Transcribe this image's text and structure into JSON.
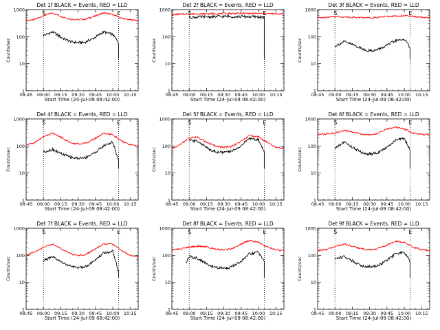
{
  "figure": {
    "background": "#ffffff",
    "event_color": "#000000",
    "lld_color": "#ff0000"
  },
  "chart_data": [
    {
      "type": "line",
      "title": "Det 1f BLACK = Events, RED = LLD",
      "xlabel": "Start Time (24-Jul-09 08:42:00)",
      "ylabel": "Counts/sec",
      "yscale": "log",
      "ylim": [
        1,
        1000
      ],
      "xlim": [
        "08:45",
        "10:22"
      ],
      "xticks": [
        "08:45",
        "09:00",
        "09:15",
        "09:30",
        "09:45",
        "10:00",
        "10:15"
      ],
      "yticks": [
        "1",
        "10",
        "100",
        "1000"
      ],
      "grid": false,
      "markers": [
        {
          "x": "09:00",
          "label": "S",
          "style": "dotted"
        },
        {
          "x": "10:05",
          "label": "E",
          "style": "dotted"
        }
      ],
      "series": [
        {
          "name": "Events",
          "color": "#000000",
          "x": [
            "09:00",
            "09:08",
            "09:16",
            "09:24",
            "09:30",
            "09:36",
            "09:44",
            "09:52",
            "10:00",
            "10:05"
          ],
          "values": [
            110,
            150,
            90,
            65,
            60,
            62,
            90,
            150,
            120,
            60
          ]
        },
        {
          "name": "LLD",
          "color": "#ff0000",
          "x": [
            "08:45",
            "08:52",
            "09:00",
            "09:08",
            "09:16",
            "09:24",
            "09:30",
            "09:36",
            "09:44",
            "09:52",
            "10:00",
            "10:08",
            "10:15",
            "10:22"
          ],
          "values": [
            400,
            420,
            600,
            750,
            550,
            440,
            430,
            440,
            560,
            760,
            650,
            480,
            420,
            400
          ]
        }
      ]
    },
    {
      "type": "line",
      "title": "Det 2f BLACK = Events, RED = LLD",
      "xlabel": "Start Time (24-Jul-09 08:42:00)",
      "ylabel": "Counts/sec",
      "yscale": "log",
      "ylim": [
        1,
        1000
      ],
      "xlim": [
        "08:45",
        "10:22"
      ],
      "xticks": [
        "08:45",
        "09:00",
        "09:15",
        "09:30",
        "09:45",
        "10:00",
        "10:15"
      ],
      "yticks": [
        "1",
        "10",
        "100",
        "1000"
      ],
      "grid": false,
      "markers": [
        {
          "x": "09:00",
          "label": "S",
          "style": "dotted"
        },
        {
          "x": "10:05",
          "label": "E",
          "style": "dotted"
        }
      ],
      "series": [
        {
          "name": "Events",
          "color": "#000000",
          "x": [
            "09:00",
            "09:15",
            "09:30",
            "09:45",
            "10:00",
            "10:05"
          ],
          "values": [
            520,
            540,
            560,
            550,
            540,
            500
          ]
        },
        {
          "name": "LLD",
          "color": "#ff0000",
          "x": [
            "08:45",
            "09:00",
            "09:15",
            "09:30",
            "09:45",
            "10:00",
            "10:15",
            "10:22"
          ],
          "values": [
            660,
            690,
            700,
            720,
            730,
            720,
            700,
            690
          ]
        }
      ]
    },
    {
      "type": "line",
      "title": "Det 3f BLACK = Events, RED = LLD",
      "xlabel": "Start Time (24-Jul-09 08:42:00)",
      "ylabel": "Counts/sec",
      "yscale": "log",
      "ylim": [
        1,
        1000
      ],
      "xlim": [
        "08:45",
        "10:22"
      ],
      "xticks": [
        "08:45",
        "09:00",
        "09:15",
        "09:30",
        "09:45",
        "10:00",
        "10:15"
      ],
      "yticks": [
        "1",
        "10",
        "100",
        "1000"
      ],
      "grid": false,
      "markers": [
        {
          "x": "09:00",
          "label": "S",
          "style": "dotted"
        },
        {
          "x": "10:05",
          "label": "E",
          "style": "dotted"
        }
      ],
      "series": [
        {
          "name": "Events",
          "color": "#000000",
          "x": [
            "09:00",
            "09:08",
            "09:16",
            "09:24",
            "09:30",
            "09:36",
            "09:44",
            "09:52",
            "10:00",
            "10:05"
          ],
          "values": [
            45,
            65,
            50,
            35,
            30,
            32,
            45,
            70,
            80,
            40
          ]
        },
        {
          "name": "LLD",
          "color": "#ff0000",
          "x": [
            "08:45",
            "09:00",
            "09:15",
            "09:30",
            "09:45",
            "10:00",
            "10:15",
            "10:22"
          ],
          "values": [
            500,
            560,
            520,
            500,
            560,
            600,
            520,
            500
          ]
        }
      ]
    },
    {
      "type": "line",
      "title": "Det 4f BLACK = Events, RED = LLD",
      "xlabel": "Start Time (24-Jul-09 08:42:00)",
      "ylabel": "Counts/sec",
      "yscale": "log",
      "ylim": [
        1,
        1000
      ],
      "xlim": [
        "08:45",
        "10:22"
      ],
      "xticks": [
        "08:45",
        "09:00",
        "09:15",
        "09:30",
        "09:45",
        "10:00",
        "10:15"
      ],
      "yticks": [
        "1",
        "10",
        "100",
        "1000"
      ],
      "grid": false,
      "markers": [
        {
          "x": "09:00",
          "label": "S",
          "style": "dotted"
        },
        {
          "x": "10:05",
          "label": "E",
          "style": "dotted"
        }
      ],
      "series": [
        {
          "name": "Events",
          "color": "#000000",
          "x": [
            "09:00",
            "09:08",
            "09:16",
            "09:24",
            "09:30",
            "09:36",
            "09:44",
            "09:52",
            "10:00",
            "10:05"
          ],
          "values": [
            60,
            75,
            50,
            38,
            35,
            37,
            55,
            100,
            140,
            30
          ]
        },
        {
          "name": "LLD",
          "color": "#ff0000",
          "x": [
            "08:45",
            "08:52",
            "09:00",
            "09:08",
            "09:16",
            "09:24",
            "09:30",
            "09:36",
            "09:44",
            "09:52",
            "10:00",
            "10:08",
            "10:15",
            "10:22"
          ],
          "values": [
            110,
            130,
            220,
            300,
            200,
            130,
            120,
            125,
            180,
            300,
            260,
            150,
            110,
            100
          ]
        }
      ]
    },
    {
      "type": "line",
      "title": "Det 5f BLACK = Events, RED = LLD",
      "xlabel": "Start Time (24-Jul-09 08:42:00)",
      "ylabel": "Counts/sec",
      "yscale": "log",
      "ylim": [
        1,
        1000
      ],
      "xlim": [
        "08:45",
        "10:22"
      ],
      "xticks": [
        "08:45",
        "09:00",
        "09:15",
        "09:30",
        "09:45",
        "10:00",
        "10:15"
      ],
      "yticks": [
        "1",
        "10",
        "100",
        "1000"
      ],
      "grid": false,
      "markers": [
        {
          "x": "09:00",
          "label": "S",
          "style": "dotted"
        },
        {
          "x": "10:05",
          "label": "E",
          "style": "dotted"
        }
      ],
      "series": [
        {
          "name": "Events",
          "color": "#000000",
          "x": [
            "09:00",
            "09:08",
            "09:16",
            "09:24",
            "09:30",
            "09:36",
            "09:44",
            "09:52",
            "10:00",
            "10:05"
          ],
          "values": [
            160,
            150,
            80,
            60,
            58,
            62,
            95,
            190,
            170,
            60
          ]
        },
        {
          "name": "LLD",
          "color": "#ff0000",
          "x": [
            "08:45",
            "08:52",
            "09:00",
            "09:08",
            "09:16",
            "09:24",
            "09:30",
            "09:36",
            "09:44",
            "09:52",
            "10:00",
            "10:08",
            "10:15",
            "10:22"
          ],
          "values": [
            80,
            110,
            200,
            210,
            130,
            95,
            90,
            95,
            140,
            240,
            220,
            130,
            90,
            80
          ]
        }
      ]
    },
    {
      "type": "line",
      "title": "Det 6f BLACK = Events, RED = LLD",
      "xlabel": "Start Time (24-Jul-09 08:42:00)",
      "ylabel": "Counts/sec",
      "yscale": "log",
      "ylim": [
        1,
        1000
      ],
      "xlim": [
        "08:45",
        "10:22"
      ],
      "xticks": [
        "08:45",
        "09:00",
        "09:15",
        "09:30",
        "09:45",
        "10:00",
        "10:15"
      ],
      "yticks": [
        "1",
        "10",
        "100",
        "1000"
      ],
      "grid": false,
      "markers": [
        {
          "x": "09:00",
          "label": "S",
          "style": "dotted"
        },
        {
          "x": "10:05",
          "label": "E",
          "style": "dotted"
        }
      ],
      "series": [
        {
          "name": "Events",
          "color": "#000000",
          "x": [
            "09:00",
            "09:08",
            "09:16",
            "09:24",
            "09:30",
            "09:36",
            "09:44",
            "09:52",
            "10:00",
            "10:05"
          ],
          "values": [
            80,
            140,
            85,
            55,
            50,
            55,
            80,
            160,
            190,
            70
          ]
        },
        {
          "name": "LLD",
          "color": "#ff0000",
          "x": [
            "08:45",
            "09:00",
            "09:08",
            "09:16",
            "09:24",
            "09:30",
            "09:36",
            "09:44",
            "09:52",
            "10:00",
            "10:08",
            "10:15",
            "10:22"
          ],
          "values": [
            260,
            300,
            370,
            320,
            270,
            260,
            280,
            400,
            500,
            420,
            300,
            270,
            260
          ]
        }
      ]
    },
    {
      "type": "line",
      "title": "Det 7f BLACK = Events, RED = LLD",
      "xlabel": "Start Time (24-Jul-09 08:42:00)",
      "ylabel": "Counts/sec",
      "yscale": "log",
      "ylim": [
        1,
        1000
      ],
      "xlim": [
        "08:45",
        "10:22"
      ],
      "xticks": [
        "08:45",
        "09:00",
        "09:15",
        "09:30",
        "09:45",
        "10:00",
        "10:15"
      ],
      "yticks": [
        "1",
        "10",
        "100",
        "1000"
      ],
      "grid": false,
      "markers": [
        {
          "x": "09:00",
          "label": "S",
          "style": "dotted"
        },
        {
          "x": "10:05",
          "label": "E",
          "style": "dotted"
        }
      ],
      "series": [
        {
          "name": "Events",
          "color": "#000000",
          "x": [
            "09:00",
            "09:08",
            "09:16",
            "09:24",
            "09:30",
            "09:36",
            "09:44",
            "09:52",
            "10:00",
            "10:05"
          ],
          "values": [
            65,
            85,
            55,
            38,
            35,
            38,
            60,
            120,
            140,
            25
          ]
        },
        {
          "name": "LLD",
          "color": "#ff0000",
          "x": [
            "08:45",
            "08:52",
            "09:00",
            "09:08",
            "09:16",
            "09:24",
            "09:30",
            "09:36",
            "09:44",
            "09:52",
            "10:00",
            "10:08",
            "10:15",
            "10:22"
          ],
          "values": [
            100,
            130,
            200,
            260,
            170,
            110,
            100,
            105,
            160,
            260,
            260,
            150,
            100,
            90
          ]
        }
      ]
    },
    {
      "type": "line",
      "title": "Det 8f BLACK = Events, RED = LLD",
      "xlabel": "Start Time (24-Jul-09 08:42:00)",
      "ylabel": "Counts/sec",
      "yscale": "log",
      "ylim": [
        1,
        1000
      ],
      "xlim": [
        "08:45",
        "10:22"
      ],
      "xticks": [
        "08:45",
        "09:00",
        "09:15",
        "09:30",
        "09:45",
        "10:00",
        "10:15"
      ],
      "yticks": [
        "1",
        "10",
        "100",
        "1000"
      ],
      "grid": false,
      "markers": [
        {
          "x": "09:00",
          "label": "S",
          "style": "dotted"
        },
        {
          "x": "10:05",
          "label": "E",
          "style": "dotted"
        }
      ],
      "series": [
        {
          "name": "Events",
          "color": "#000000",
          "x": [
            "08:57",
            "09:00",
            "09:08",
            "09:16",
            "09:24",
            "09:30",
            "09:36",
            "09:44",
            "09:52",
            "10:00",
            "10:05"
          ],
          "values": [
            50,
            90,
            75,
            45,
            35,
            33,
            36,
            55,
            110,
            130,
            60
          ]
        },
        {
          "name": "LLD",
          "color": "#ff0000",
          "x": [
            "08:45",
            "08:52",
            "09:00",
            "09:08",
            "09:16",
            "09:24",
            "09:30",
            "09:36",
            "09:44",
            "09:52",
            "10:00",
            "10:08",
            "10:15",
            "10:22"
          ],
          "values": [
            160,
            170,
            200,
            220,
            200,
            170,
            160,
            170,
            250,
            350,
            300,
            200,
            160,
            150
          ]
        }
      ]
    },
    {
      "type": "line",
      "title": "Det 9f BLACK = Events, RED = LLD",
      "xlabel": "Start Time (24-Jul-09 08:42:00)",
      "ylabel": "Counts/sec",
      "yscale": "log",
      "ylim": [
        1,
        1000
      ],
      "xlim": [
        "08:45",
        "10:22"
      ],
      "xticks": [
        "08:45",
        "09:00",
        "09:15",
        "09:30",
        "09:45",
        "10:00",
        "10:15"
      ],
      "yticks": [
        "1",
        "10",
        "100",
        "1000"
      ],
      "grid": false,
      "markers": [
        {
          "x": "09:00",
          "label": "S",
          "style": "dotted"
        },
        {
          "x": "10:05",
          "label": "E",
          "style": "dotted"
        }
      ],
      "series": [
        {
          "name": "Events",
          "color": "#000000",
          "x": [
            "09:00",
            "09:08",
            "09:16",
            "09:24",
            "09:30",
            "09:36",
            "09:44",
            "09:52",
            "10:00",
            "10:05"
          ],
          "values": [
            75,
            90,
            60,
            40,
            38,
            40,
            60,
            110,
            130,
            60
          ]
        },
        {
          "name": "LLD",
          "color": "#ff0000",
          "x": [
            "08:45",
            "08:52",
            "09:00",
            "09:08",
            "09:16",
            "09:24",
            "09:30",
            "09:36",
            "09:44",
            "09:52",
            "10:00",
            "10:08",
            "10:15",
            "10:22"
          ],
          "values": [
            150,
            160,
            210,
            260,
            210,
            170,
            160,
            170,
            230,
            330,
            300,
            200,
            160,
            150
          ]
        }
      ]
    }
  ]
}
